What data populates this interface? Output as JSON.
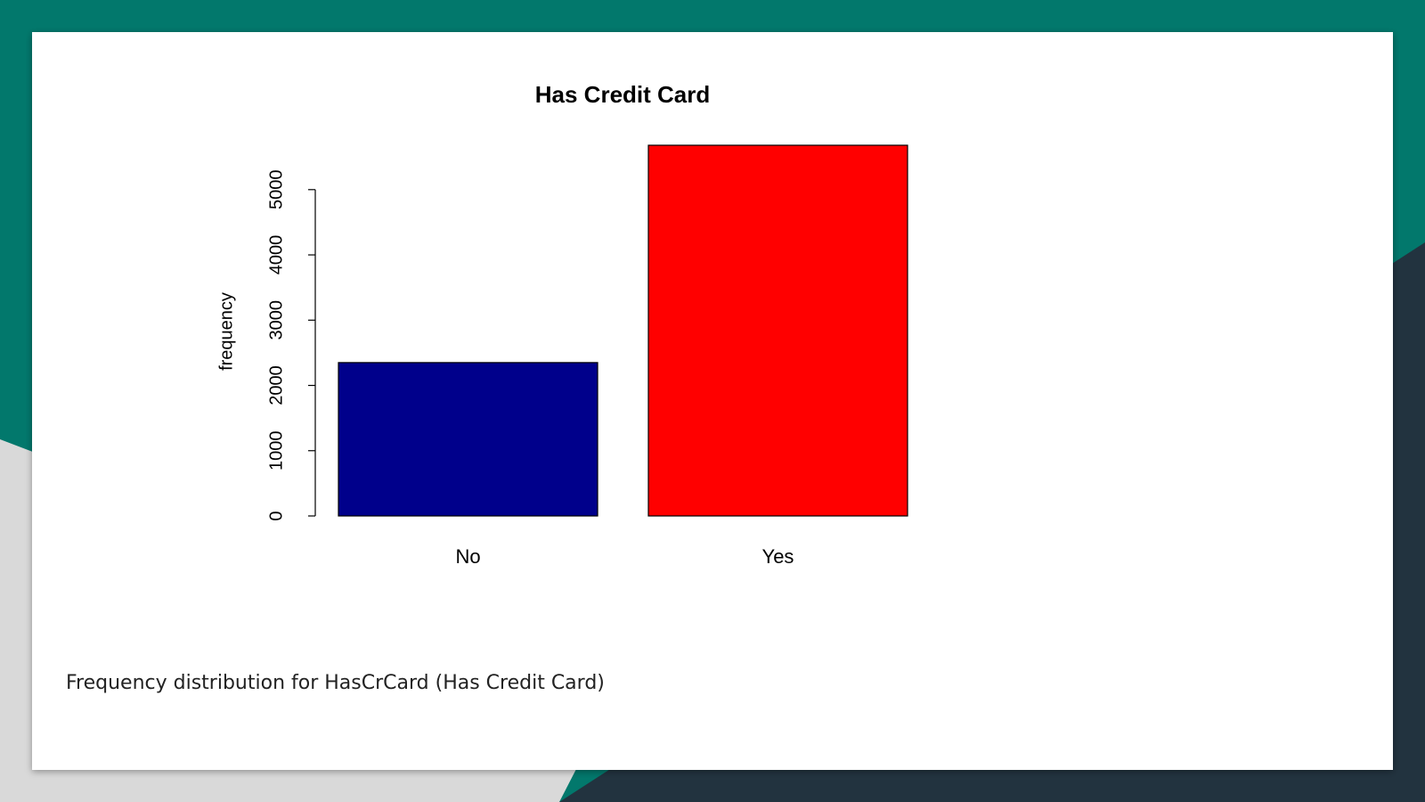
{
  "chart_data": {
    "type": "bar",
    "title": "Has Credit Card",
    "y_label": "frequency",
    "categories": [
      "No",
      "Yes"
    ],
    "values": [
      2350,
      5680
    ],
    "colors": [
      "#00008b",
      "#ff0000"
    ],
    "ylim": [
      0,
      5680
    ],
    "yticks": [
      0,
      1000,
      2000,
      3000,
      4000,
      5000
    ],
    "grid": false
  },
  "caption": "Frequency distribution for HasCrCard (Has Credit Card)"
}
